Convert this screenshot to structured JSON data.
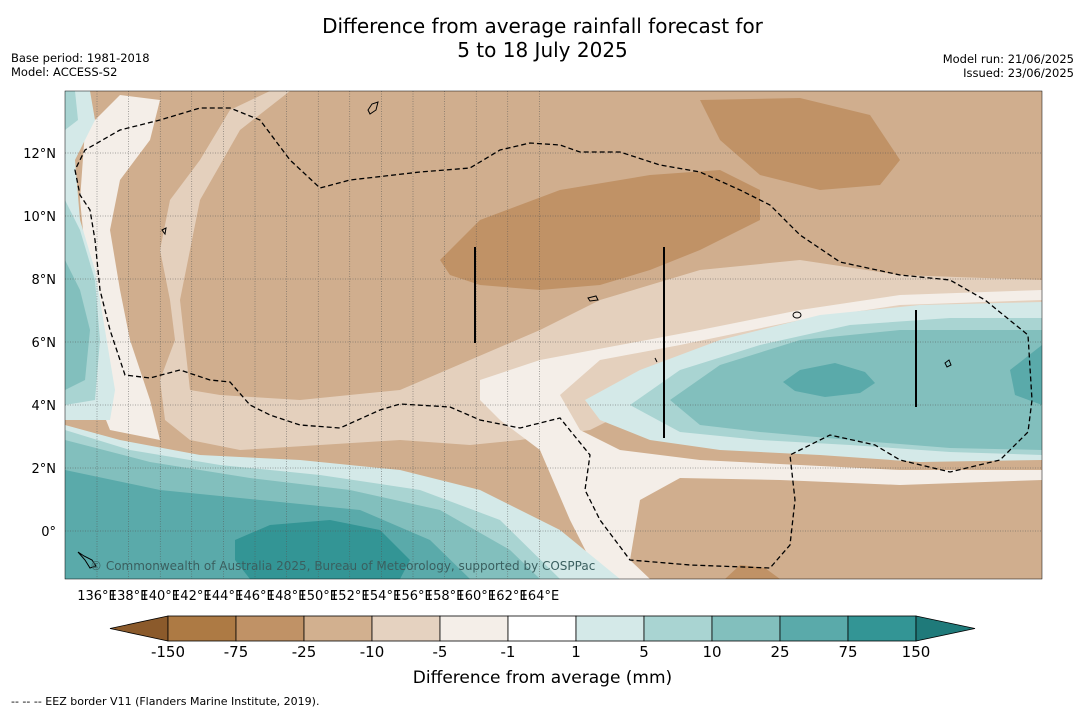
{
  "title_line1": "Difference from average rainfall forecast for",
  "title_line2": "5 to 18 July 2025",
  "base_period": "Base period: 1981-2018",
  "model": "Model: ACCESS-S2",
  "model_run": "Model run: 21/06/2025",
  "issued": "Issued: 23/06/2025",
  "copyright": "© Commonwealth of Australia 2025, Bureau of Meteorology, supported by COSPPac",
  "lon_labels": [
    "136°E",
    "138°E",
    "140°E",
    "142°E",
    "144°E",
    "146°E",
    "148°E",
    "150°E",
    "152°E",
    "154°E",
    "156°E",
    "158°E",
    "160°E",
    "162°E",
    "164°E"
  ],
  "lat_labels": [
    "12°N",
    "10°N",
    "8°N",
    "6°N",
    "4°N",
    "2°N",
    "0°"
  ],
  "colorbar": {
    "labels": [
      "-150",
      "-75",
      "-25",
      "-10",
      "-5",
      "-1",
      "1",
      "5",
      "10",
      "25",
      "75",
      "150"
    ],
    "colors": [
      "#8b5a2b",
      "#ad7a44",
      "#c09266",
      "#d2b08f",
      "#e5d2c0",
      "#f4eee8",
      "#ffffff",
      "#d4e9e8",
      "#a9d4d2",
      "#82bfbd",
      "#5aaaaa",
      "#339595",
      "#1f7a7a"
    ],
    "title": "Difference from average (mm)"
  },
  "footnote": "--  --  -- EEZ border V11 (Flanders Marine Institute, 2019)."
}
